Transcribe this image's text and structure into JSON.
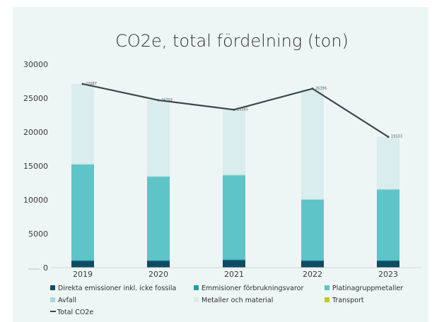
{
  "chart_data": {
    "type": "bar",
    "stacked": true,
    "title": "CO2e, total fördelning (ton)",
    "xlabel": "",
    "ylabel": "",
    "categories": [
      "2019",
      "2020",
      "2021",
      "2022",
      "2023"
    ],
    "ylim": [
      0,
      30000
    ],
    "yticks": [
      0,
      5000,
      10000,
      15000,
      20000,
      25000,
      30000
    ],
    "grid": false,
    "legend_position": "bottom",
    "series": [
      {
        "name": "Direkta emissioner inkl. icke fossila",
        "color": "#0d4a63",
        "values": [
          1000,
          1000,
          1100,
          1000,
          1000
        ]
      },
      {
        "name": "Emmisioner förbrukningsvaror",
        "color": "#1f9fa3",
        "values": [
          100,
          100,
          100,
          100,
          100
        ]
      },
      {
        "name": "Platinagruppmetaller",
        "color": "#5ec4c7",
        "values": [
          14100,
          12300,
          12400,
          8900,
          10400
        ]
      },
      {
        "name": "Avfall",
        "color": "#a9d9dc",
        "values": [
          100,
          100,
          100,
          100,
          100
        ]
      },
      {
        "name": "Metaller och material",
        "color": "#d9ecee",
        "values": [
          11800,
          11200,
          9600,
          16200,
          7700
        ]
      },
      {
        "name": "Transport",
        "color": "#b7cf1a",
        "values": [
          0,
          0,
          0,
          0,
          0
        ]
      }
    ],
    "line": {
      "name": "Total CO2e",
      "color": "#3d4a4a",
      "values": [
        27100,
        24700,
        23300,
        26400,
        19300
      ]
    },
    "data_labels": [
      "27087",
      "24703",
      "23345",
      "26396",
      "19333"
    ]
  }
}
